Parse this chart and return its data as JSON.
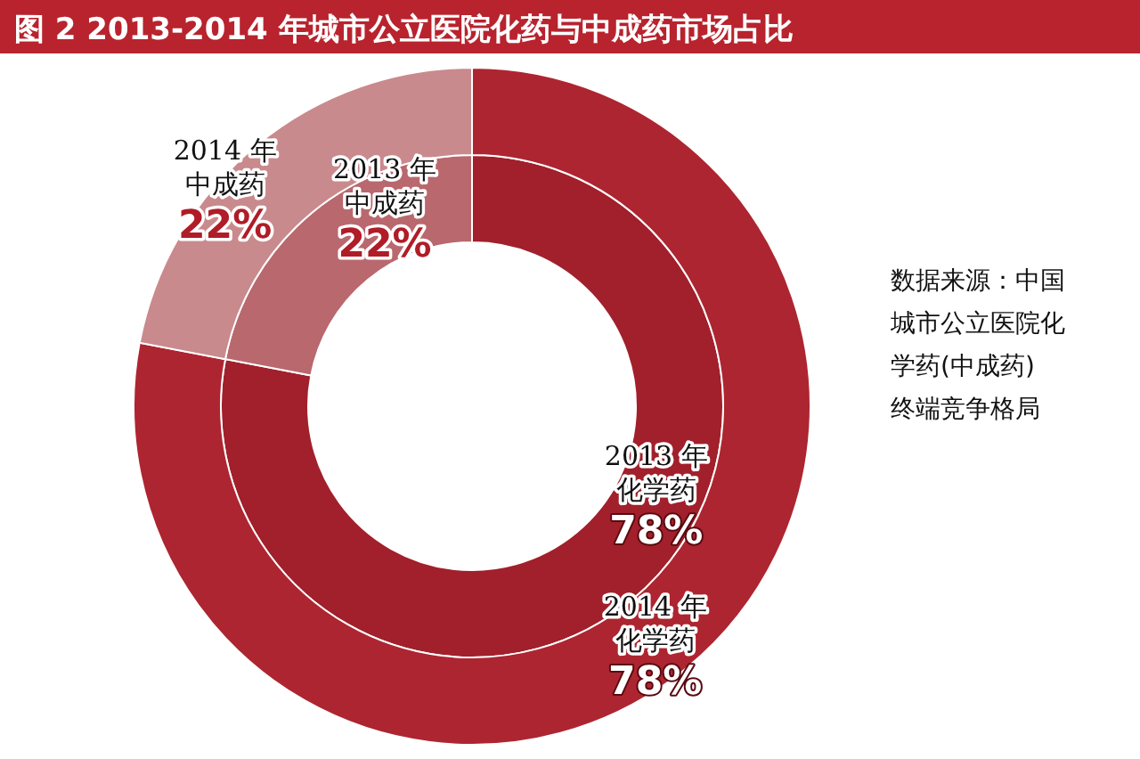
{
  "chart_data": {
    "type": "donut",
    "title": "图 2  2013-2014 年城市公立医院化药与中成药市场占比",
    "categories": [
      "化学药",
      "中成药"
    ],
    "series": [
      {
        "name": "2013 年",
        "values": [
          78,
          22
        ],
        "value_labels": [
          "78%",
          "22%"
        ],
        "colors": [
          "#a1202b",
          "#b9686e"
        ]
      },
      {
        "name": "2014 年",
        "values": [
          78,
          22
        ],
        "value_labels": [
          "78%",
          "22%"
        ],
        "colors": [
          "#ad2530",
          "#c98a8d"
        ]
      }
    ],
    "legend": false,
    "annotations": [
      "数据来源：中国城市公立医院化学药(中成药)终端竞争格局"
    ]
  }
}
